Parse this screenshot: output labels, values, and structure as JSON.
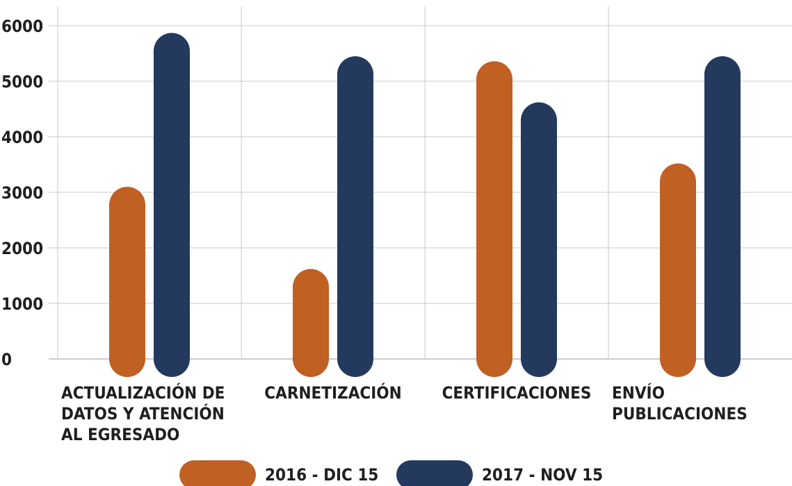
{
  "chart_data": {
    "type": "bar",
    "categories": [
      "ACTUALIZACIÓN DE DATOS Y ATENCIÓN AL EGRESADO",
      "CARNETIZACIÓN",
      "CERTIFICACIONES",
      "ENVÍO PUBLICACIONES"
    ],
    "series": [
      {
        "name": "2016 - DIC 15",
        "color": "#c06023",
        "values": [
          3100,
          1620,
          5360,
          3520
        ]
      },
      {
        "name": "2017 - NOV 15",
        "color": "#233a5e",
        "values": [
          5870,
          5450,
          4620,
          5450
        ]
      }
    ],
    "ylim": [
      0,
      6000
    ],
    "yticks": [
      0,
      1000,
      2000,
      3000,
      4000,
      5000,
      6000
    ],
    "grid": true,
    "legend": "bottom"
  }
}
